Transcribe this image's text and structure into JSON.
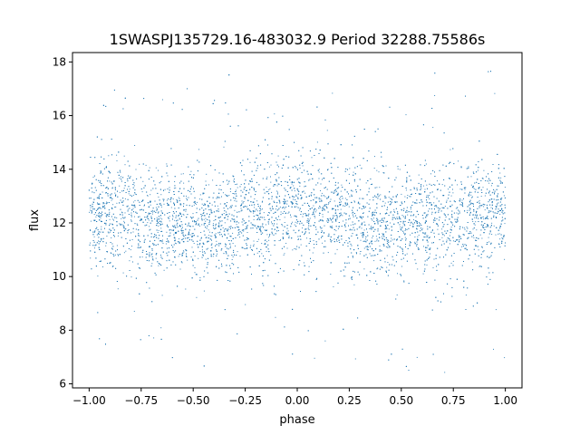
{
  "chart_data": {
    "type": "scatter",
    "title": "1SWASPJ135729.16-483032.9 Period 32288.75586s",
    "xlabel": "phase",
    "ylabel": "flux",
    "xlim": [
      -1.08,
      1.08
    ],
    "ylim": [
      5.85,
      18.35
    ],
    "xticks": [
      -1.0,
      -0.75,
      -0.5,
      -0.25,
      0.0,
      0.25,
      0.5,
      0.75,
      1.0
    ],
    "xtick_labels": [
      "−1.00",
      "−0.75",
      "−0.50",
      "−0.25",
      "0.00",
      "0.25",
      "0.50",
      "0.75",
      "1.00"
    ],
    "yticks": [
      6,
      8,
      10,
      12,
      14,
      16,
      18
    ],
    "ytick_labels": [
      "6",
      "8",
      "10",
      "12",
      "14",
      "16",
      "18"
    ],
    "grid": false,
    "marker_color": "#1f77b4",
    "series": [
      {
        "phase_range": [
          -1.0,
          1.0
        ],
        "flux_range": [
          6.4,
          17.7
        ],
        "approx_center_flux": 12.2,
        "dense_band": [
          10.0,
          14.5
        ],
        "points_sample": [
          {
            "x": -1.0,
            "y": 12.3
          },
          {
            "x": -0.9,
            "y": 12.1
          },
          {
            "x": -0.8,
            "y": 12.0
          },
          {
            "x": -0.75,
            "y": 11.8
          },
          {
            "x": -0.6,
            "y": 12.2
          },
          {
            "x": -0.5,
            "y": 11.8
          },
          {
            "x": -0.4,
            "y": 11.9
          },
          {
            "x": -0.25,
            "y": 11.8
          },
          {
            "x": -0.1,
            "y": 12.1
          },
          {
            "x": 0.0,
            "y": 12.2
          },
          {
            "x": 0.1,
            "y": 12.3
          },
          {
            "x": 0.25,
            "y": 11.9
          },
          {
            "x": 0.4,
            "y": 11.9
          },
          {
            "x": 0.5,
            "y": 11.8
          },
          {
            "x": 0.6,
            "y": 12.0
          },
          {
            "x": 0.75,
            "y": 11.8
          },
          {
            "x": 0.9,
            "y": 12.1
          },
          {
            "x": 1.0,
            "y": 12.3
          }
        ]
      }
    ]
  }
}
